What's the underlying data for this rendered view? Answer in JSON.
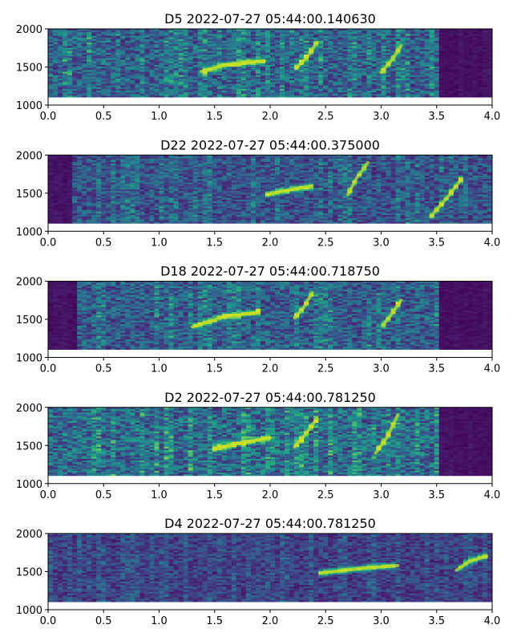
{
  "chart_data": [
    {
      "type": "heatmap",
      "title": "D5 2022-07-27 05:44:00.140630",
      "xlabel": "",
      "ylabel": "",
      "xlim": [
        0.0,
        4.0
      ],
      "ylim": [
        1000,
        2000
      ],
      "xticks": [
        "0.0",
        "0.5",
        "1.0",
        "1.5",
        "2.0",
        "2.5",
        "3.0",
        "3.5",
        "4.0"
      ],
      "yticks": [
        "1000",
        "1500",
        "2000"
      ],
      "colormap": "viridis",
      "freq_floor": 1100,
      "calls": [
        {
          "t": [
            1.38,
            1.6,
            1.95
          ],
          "f": [
            1440,
            1530,
            1580
          ]
        },
        {
          "t": [
            2.23,
            2.34,
            2.42
          ],
          "f": [
            1480,
            1640,
            1820
          ]
        },
        {
          "t": [
            3.0,
            3.1,
            3.18
          ],
          "f": [
            1430,
            1600,
            1780
          ]
        }
      ],
      "activity": [
        [
          0.0,
          3.5,
          0.9
        ]
      ]
    },
    {
      "type": "heatmap",
      "title": "D22 2022-07-27 05:44:00.375000",
      "xlabel": "",
      "ylabel": "",
      "xlim": [
        0.0,
        4.0
      ],
      "ylim": [
        1000,
        2000
      ],
      "xticks": [
        "0.0",
        "0.5",
        "1.0",
        "1.5",
        "2.0",
        "2.5",
        "3.0",
        "3.5",
        "4.0"
      ],
      "yticks": [
        "1000",
        "1500",
        "2000"
      ],
      "colormap": "viridis",
      "freq_floor": 1100,
      "calls": [
        {
          "t": [
            1.97,
            2.2,
            2.37
          ],
          "f": [
            1480,
            1550,
            1590
          ]
        },
        {
          "t": [
            2.7,
            2.78,
            2.88
          ],
          "f": [
            1480,
            1700,
            1900
          ]
        },
        {
          "t": [
            3.45,
            3.6,
            3.72
          ],
          "f": [
            1200,
            1450,
            1680
          ]
        }
      ],
      "activity": [
        [
          0.2,
          4.0,
          0.75
        ]
      ]
    },
    {
      "type": "heatmap",
      "title": "D18 2022-07-27 05:44:00.718750",
      "xlabel": "",
      "ylabel": "",
      "xlim": [
        0.0,
        4.0
      ],
      "ylim": [
        1000,
        2000
      ],
      "xticks": [
        "0.0",
        "0.5",
        "1.0",
        "1.5",
        "2.0",
        "2.5",
        "3.0",
        "3.5",
        "4.0"
      ],
      "yticks": [
        "1000",
        "1500",
        "2000"
      ],
      "colormap": "viridis",
      "freq_floor": 1100,
      "calls": [
        {
          "t": [
            1.3,
            1.6,
            1.9
          ],
          "f": [
            1400,
            1540,
            1590
          ]
        },
        {
          "t": [
            2.22,
            2.3,
            2.38
          ],
          "f": [
            1520,
            1650,
            1850
          ]
        },
        {
          "t": [
            3.02,
            3.1,
            3.18
          ],
          "f": [
            1430,
            1580,
            1750
          ]
        }
      ],
      "activity": [
        [
          0.25,
          3.5,
          0.85
        ]
      ]
    },
    {
      "type": "heatmap",
      "title": "D2 2022-07-27 05:44:00.781250",
      "xlabel": "",
      "ylabel": "",
      "xlim": [
        0.0,
        4.0
      ],
      "ylim": [
        1000,
        2000
      ],
      "xticks": [
        "0.0",
        "0.5",
        "1.0",
        "1.5",
        "2.0",
        "2.5",
        "3.0",
        "3.5",
        "4.0"
      ],
      "yticks": [
        "1000",
        "1500",
        "2000"
      ],
      "colormap": "viridis",
      "freq_floor": 1100,
      "calls": [
        {
          "t": [
            1.5,
            1.75,
            2.0
          ],
          "f": [
            1460,
            1540,
            1600
          ]
        },
        {
          "t": [
            2.22,
            2.32,
            2.42
          ],
          "f": [
            1480,
            1650,
            1850
          ]
        },
        {
          "t": [
            2.95,
            3.05,
            3.15
          ],
          "f": [
            1400,
            1600,
            1900
          ]
        }
      ],
      "activity": [
        [
          0.0,
          3.5,
          1.0
        ]
      ]
    },
    {
      "type": "heatmap",
      "title": "D4 2022-07-27 05:44:00.781250",
      "xlabel": "",
      "ylabel": "",
      "xlim": [
        0.0,
        4.0
      ],
      "ylim": [
        1000,
        2000
      ],
      "xticks": [
        "0.0",
        "0.5",
        "1.0",
        "1.5",
        "2.0",
        "2.5",
        "3.0",
        "3.5",
        "4.0"
      ],
      "yticks": [
        "1000",
        "1500",
        "2000"
      ],
      "colormap": "viridis",
      "freq_floor": 1100,
      "calls": [
        {
          "t": [
            2.45,
            2.8,
            3.15
          ],
          "f": [
            1480,
            1540,
            1580
          ]
        },
        {
          "t": [
            3.68,
            3.8,
            3.95
          ],
          "f": [
            1520,
            1640,
            1700
          ]
        }
      ],
      "activity": [
        [
          0.0,
          4.0,
          0.55
        ]
      ]
    }
  ]
}
